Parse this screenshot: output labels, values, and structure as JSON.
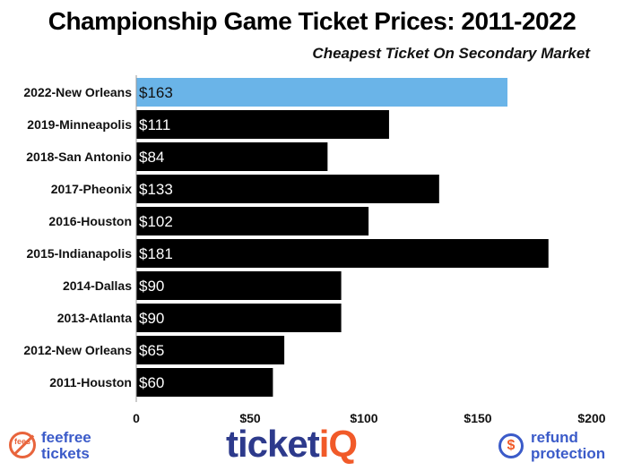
{
  "chart_data": {
    "type": "bar",
    "orientation": "horizontal",
    "title": "Championship Game Ticket Prices: 2011-2022",
    "subtitle": "Cheapest Ticket On Secondary Market",
    "categories": [
      "2022-New Orleans",
      "2019-Minneapolis",
      "2018-San Antonio",
      "2017-Pheonix",
      "2016-Houston",
      "2015-Indianapolis",
      "2014-Dallas",
      "2013-Atlanta",
      "2012-New Orleans",
      "2011-Houston"
    ],
    "values": [
      163,
      111,
      84,
      133,
      102,
      181,
      90,
      90,
      65,
      60
    ],
    "data_labels": [
      "$163",
      "$111",
      "$84",
      "$133",
      "$102",
      "$181",
      "$90",
      "$90",
      "$65",
      "$60"
    ],
    "bar_colors": [
      "#6ab4e8",
      "#000000",
      "#000000",
      "#000000",
      "#000000",
      "#000000",
      "#000000",
      "#000000",
      "#000000",
      "#000000"
    ],
    "xlim": [
      0,
      200
    ],
    "xticks": [
      0,
      50,
      100,
      150,
      200
    ],
    "xtick_labels": [
      "0",
      "$50",
      "$100",
      "$150",
      "$200"
    ],
    "grid": false,
    "legend": "none"
  },
  "footer": {
    "feefree_small": "fees",
    "feefree_line1": "feefree",
    "feefree_line2": "tickets",
    "ticketiq_main": "ticket",
    "ticketiq_accent": "iQ",
    "refund_symbol": "$",
    "refund_line1": "refund",
    "refund_line2": "protection"
  }
}
